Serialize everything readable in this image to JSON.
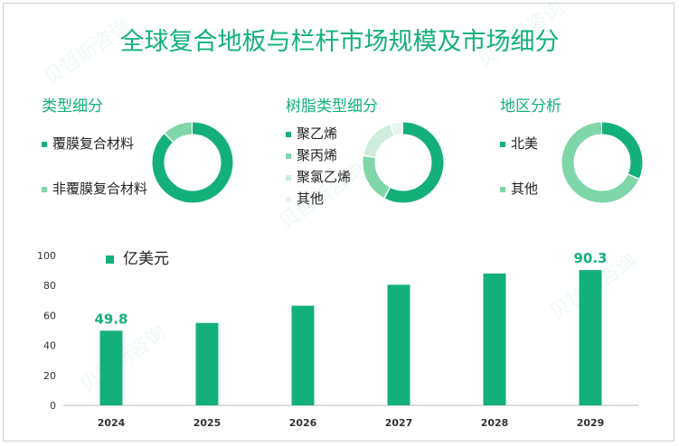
{
  "title": "全球复合地板与栏杆市场规模及市场细分",
  "watermark": "贝哲斯咨询",
  "sections": [
    {
      "title": "类型细分",
      "items": [
        {
          "label": "覆膜复合材料",
          "value": 88,
          "color": "#14b07a"
        },
        {
          "label": "非覆膜复合材料",
          "value": 12,
          "color": "#7fd6a8"
        }
      ]
    },
    {
      "title": "树脂类型细分",
      "items": [
        {
          "label": "聚乙烯",
          "value": 58,
          "color": "#14b07a"
        },
        {
          "label": "聚丙烯",
          "value": 20,
          "color": "#7fd6a8"
        },
        {
          "label": "聚氯乙烯",
          "value": 17,
          "color": "#cdeedd"
        },
        {
          "label": "其他",
          "value": 5,
          "color": "#e8f5ee"
        }
      ]
    },
    {
      "title": "地区分析",
      "items": [
        {
          "label": "北美",
          "value": 32,
          "color": "#14b07a"
        },
        {
          "label": "其他",
          "value": 68,
          "color": "#7fd6a8"
        }
      ]
    }
  ],
  "chart_data": {
    "type": "bar",
    "series_name": "亿美元",
    "categories": [
      "2024",
      "2025",
      "2026",
      "2027",
      "2028",
      "2029"
    ],
    "values": [
      49.8,
      55,
      66.5,
      80.5,
      88,
      90.3
    ],
    "data_labels": [
      "49.8",
      "",
      "",
      "",
      "",
      "90.3"
    ],
    "ylim": [
      0,
      100
    ],
    "yticks": [
      0,
      20,
      40,
      60,
      80,
      100
    ],
    "color": "#14b07a"
  }
}
